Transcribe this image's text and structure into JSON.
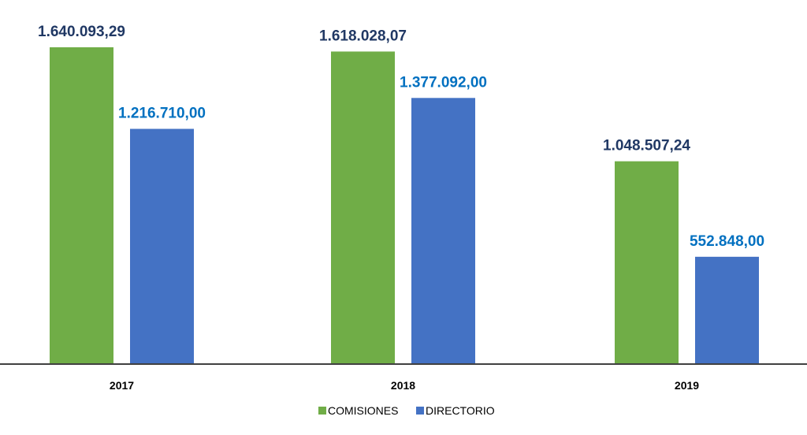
{
  "chart_data": {
    "type": "bar",
    "categories": [
      "2017",
      "2018",
      "2019"
    ],
    "series": [
      {
        "name": "COMISIONES",
        "values": [
          1640093.29,
          1618028.07,
          1048507.24
        ],
        "labels": [
          "1.640.093,29",
          "1.618.028,07",
          "1.048.507,24"
        ],
        "color": "#70AD47",
        "label_color": "#203864"
      },
      {
        "name": "DIRECTORIO",
        "values": [
          1216710.0,
          1377092.0,
          552848.0
        ],
        "labels": [
          "1.216.710,00",
          "1.377.092,00",
          "552.848,00"
        ],
        "color": "#4472C4",
        "label_color": "#0070C0"
      }
    ],
    "ylim": [
      0,
      1640093.29
    ],
    "grid": false,
    "legend": "bottom"
  }
}
